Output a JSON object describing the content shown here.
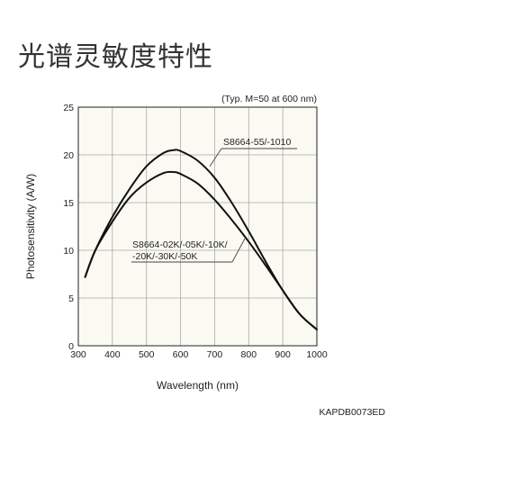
{
  "page": {
    "title": "光谱灵敏度特性"
  },
  "chart_data": {
    "type": "line",
    "xlabel": "Wavelength (nm)",
    "ylabel": "Photosensitivity (A/W)",
    "xlim": [
      300,
      1000
    ],
    "ylim": [
      0,
      25
    ],
    "xticks": [
      300,
      400,
      500,
      600,
      700,
      800,
      900,
      1000
    ],
    "yticks": [
      0,
      5,
      10,
      15,
      20,
      25
    ],
    "grid": true,
    "condition_note": "(Typ. M=50 at 600 nm)",
    "figure_code": "KAPDB0073ED",
    "series": [
      {
        "name": "S8664-55/-1010",
        "x": [
          320,
          350,
          400,
          450,
          500,
          550,
          580,
          600,
          650,
          700,
          750,
          800,
          850,
          900,
          950,
          1000
        ],
        "y": [
          7.2,
          10.0,
          13.5,
          16.4,
          18.8,
          20.2,
          20.5,
          20.4,
          19.4,
          17.6,
          15.0,
          12.0,
          8.8,
          5.8,
          3.3,
          1.7
        ]
      },
      {
        "name": "S8664-02K/-05K/-10K/-20K/-30K/-50K",
        "label_lines": [
          "S8664-02K/-05K/-10K/",
          "-20K/-30K/-50K"
        ],
        "x": [
          320,
          350,
          400,
          450,
          500,
          550,
          580,
          600,
          650,
          700,
          750,
          800,
          850,
          900,
          950,
          1000
        ],
        "y": [
          7.2,
          10.0,
          13.0,
          15.5,
          17.1,
          18.1,
          18.2,
          18.0,
          17.0,
          15.3,
          13.2,
          10.9,
          8.4,
          5.8,
          3.3,
          1.7
        ]
      }
    ]
  }
}
